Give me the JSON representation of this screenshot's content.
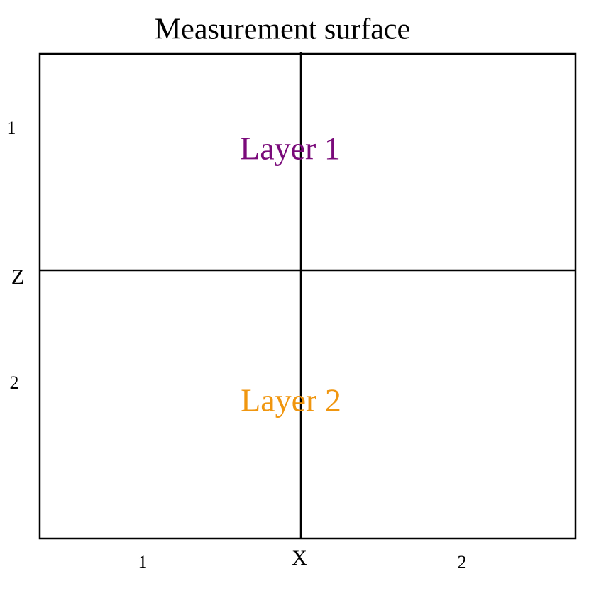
{
  "title": "Measurement surface",
  "layers": [
    {
      "label": "Layer 1"
    },
    {
      "label": "Layer 2"
    }
  ],
  "axes": {
    "z": {
      "label": "Z",
      "ticks": [
        "1",
        "2"
      ]
    },
    "x": {
      "label": "X",
      "ticks": [
        "1",
        "2"
      ]
    }
  }
}
